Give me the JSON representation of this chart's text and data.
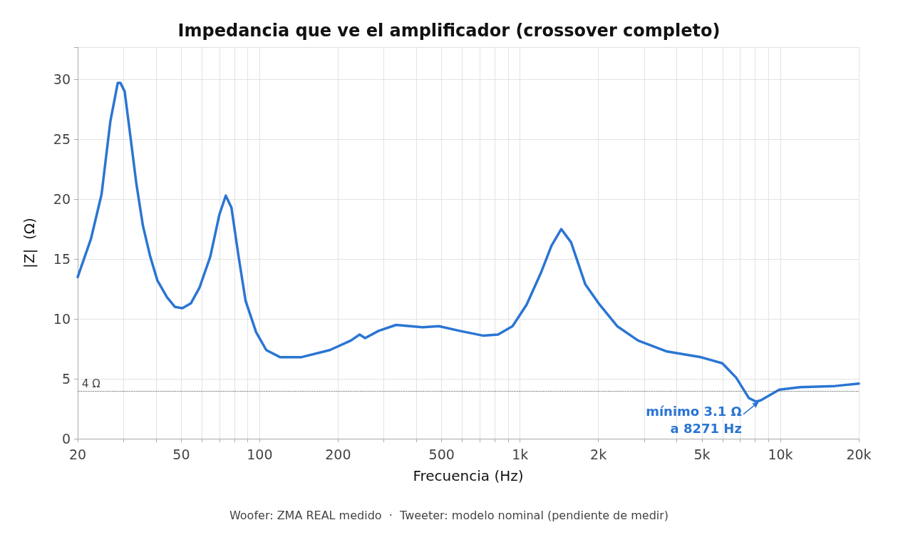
{
  "chart_data": {
    "type": "line",
    "title": "Impedancia que ve el amplificador (crossover completo)",
    "xlabel": "Frecuencia (Hz)",
    "ylabel": "|Z|  (Ω)",
    "log": "x",
    "grid": true,
    "marker": "none",
    "line_style": "solid",
    "xlim": [
      20,
      20000
    ],
    "ylim": [
      0,
      32.7
    ],
    "xticks": [
      20,
      {
        "value": 30,
        "label": null
      },
      {
        "value": 40,
        "label": null
      },
      50,
      {
        "value": 60,
        "label": null
      },
      {
        "value": 70,
        "label": null
      },
      {
        "value": 80,
        "label": null
      },
      {
        "value": 90,
        "label": null
      },
      100,
      200,
      {
        "value": 300,
        "label": null
      },
      {
        "value": 400,
        "label": null
      },
      500,
      {
        "value": 600,
        "label": null
      },
      {
        "value": 700,
        "label": null
      },
      {
        "value": 800,
        "label": null
      },
      {
        "value": 900,
        "label": null
      },
      {
        "value": 1000,
        "label": "1k"
      },
      {
        "value": 2000,
        "label": "2k"
      },
      {
        "value": 3000,
        "label": null
      },
      {
        "value": 4000,
        "label": null
      },
      {
        "value": 5000,
        "label": "5k"
      },
      {
        "value": 6000,
        "label": null
      },
      {
        "value": 7000,
        "label": null
      },
      {
        "value": 8000,
        "label": null
      },
      {
        "value": 9000,
        "label": null
      },
      {
        "value": 10000,
        "label": "10k"
      },
      {
        "value": 20000,
        "label": "20k"
      }
    ],
    "yticks": [
      0,
      5,
      10,
      15,
      20,
      25,
      30
    ],
    "x": [
      20,
      22.5,
      24.7,
      26.7,
      28.5,
      29.2,
      30.3,
      31.6,
      33.6,
      35.6,
      38,
      40.5,
      44.1,
      47.3,
      50.5,
      54.4,
      58.7,
      64.6,
      70,
      74.1,
      77.9,
      83,
      88.3,
      96.9,
      106,
      120,
      144,
      186,
      224,
      242,
      254,
      286,
      334,
      379,
      422,
      488,
      587,
      724,
      823,
      936,
      1060,
      1200,
      1320,
      1440,
      1570,
      1780,
      2020,
      2360,
      2840,
      3640,
      4960,
      5980,
      6760,
      7560,
      8050,
      8400,
      9900,
      11900,
      16200,
      20000
    ],
    "series": [
      {
        "color": "#2a75d3",
        "values": [
          13.5,
          16.7,
          20.4,
          26.5,
          29.7,
          29.7,
          29.0,
          25.9,
          21.3,
          17.8,
          15.2,
          13.2,
          11.8,
          11.0,
          10.9,
          11.3,
          12.6,
          15.2,
          18.7,
          20.3,
          19.3,
          15.2,
          11.5,
          8.9,
          7.4,
          6.8,
          6.8,
          7.4,
          8.2,
          8.7,
          8.4,
          9.0,
          9.5,
          9.4,
          9.3,
          9.4,
          9.0,
          8.6,
          8.7,
          9.4,
          11.2,
          13.8,
          16.1,
          17.5,
          16.4,
          12.9,
          11.2,
          9.4,
          8.2,
          7.3,
          6.8,
          6.3,
          5.1,
          3.4,
          3.1,
          3.2,
          4.1,
          4.3,
          4.4,
          4.6
        ]
      }
    ],
    "ref_lines": [
      {
        "axis": "y",
        "value": 4,
        "label": "4 Ω",
        "color": "#555555",
        "line_style": "dotted"
      }
    ],
    "annotations": [
      {
        "text": "mínimo 3.1 Ω\na 8271 Hz",
        "x": 8271,
        "y": 3.1
      },
      "Woofer: ZMA REAL medido  ·  Tweeter: modelo nominal (pendiente de medir)"
    ]
  }
}
